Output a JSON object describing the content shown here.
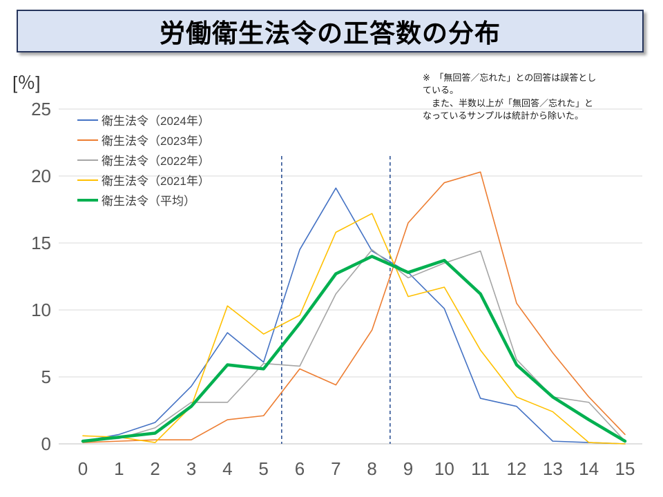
{
  "title": "労働衛生法令の正答数の分布",
  "y_unit_label": "[％]",
  "note": {
    "text": "※　「無回答／忘れた」との回答は誤答とし\nている。\n　また、半数以上が「無回答／忘れた」と\nなっているサンプルは統計から除いた。"
  },
  "chart_data": {
    "type": "line",
    "x": [
      0,
      1,
      2,
      3,
      4,
      5,
      6,
      7,
      8,
      9,
      10,
      11,
      12,
      13,
      14,
      15
    ],
    "xticks": [
      0,
      1,
      2,
      3,
      4,
      5,
      6,
      7,
      8,
      9,
      10,
      11,
      12,
      13,
      14,
      15
    ],
    "yticks": [
      0,
      5,
      10,
      15,
      20,
      25
    ],
    "xlim": [
      0,
      15
    ],
    "ylim": [
      0,
      25
    ],
    "grid": "horizontal",
    "legend_position": "top-left-inside",
    "reference_lines_x": [
      5.5,
      8.5
    ],
    "reference_line_color": "#2f5496",
    "series": [
      {
        "name": "衛生法令（2024年）",
        "color": "#4472c4",
        "width": 1.6,
        "values": [
          0.2,
          0.7,
          1.6,
          4.3,
          8.3,
          6.1,
          14.5,
          19.1,
          14.4,
          12.8,
          10.1,
          3.4,
          2.8,
          0.2,
          0.1,
          0.0
        ]
      },
      {
        "name": "衛生法令（2023年）",
        "color": "#ed7d31",
        "width": 1.6,
        "values": [
          0.1,
          0.2,
          0.3,
          0.3,
          1.8,
          2.1,
          5.6,
          4.4,
          8.5,
          16.5,
          19.5,
          20.3,
          10.5,
          6.8,
          3.5,
          0.7
        ]
      },
      {
        "name": "衛生法令（2022年）",
        "color": "#a5a5a5",
        "width": 1.6,
        "values": [
          0.2,
          0.4,
          1.2,
          3.1,
          3.1,
          6.0,
          5.8,
          11.2,
          14.5,
          12.4,
          13.5,
          14.4,
          6.3,
          3.5,
          3.1,
          0.2
        ]
      },
      {
        "name": "衛生法令（2021年）",
        "color": "#ffc000",
        "width": 1.6,
        "values": [
          0.6,
          0.5,
          0.1,
          2.8,
          10.3,
          8.2,
          9.6,
          15.8,
          17.2,
          11.0,
          11.7,
          7.0,
          3.5,
          2.4,
          0.1,
          0.0
        ]
      },
      {
        "name": "衛生法令（平均）",
        "color": "#00b050",
        "width": 4.5,
        "values": [
          0.2,
          0.5,
          0.8,
          2.8,
          5.9,
          5.6,
          9.0,
          12.7,
          14.0,
          12.8,
          13.7,
          11.2,
          5.9,
          3.5,
          1.8,
          0.2
        ]
      }
    ]
  }
}
